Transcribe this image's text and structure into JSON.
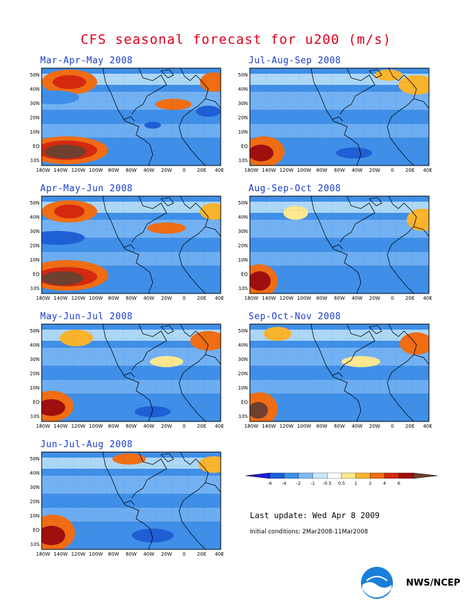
{
  "title": "CFS seasonal forecast for u200 (m/s)",
  "lat_labels": [
    "50N",
    "40N",
    "30N",
    "20N",
    "10N",
    "EQ",
    "10S"
  ],
  "lon_labels": [
    "180W",
    "140W",
    "120W",
    "100W",
    "80W",
    "60W",
    "40W",
    "20W",
    "0",
    "20E",
    "40E"
  ],
  "panels": [
    {
      "title": "Mar-Apr-May 2008"
    },
    {
      "title": "Jul-Aug-Sep 2008"
    },
    {
      "title": "Apr-May-Jun 2008"
    },
    {
      "title": "Aug-Sep-Oct 2008"
    },
    {
      "title": "May-Jun-Jul 2008"
    },
    {
      "title": "Sep-Oct-Nov 2008"
    },
    {
      "title": "Jun-Jul-Aug 2008"
    }
  ],
  "colorbar": {
    "labels": [
      "-6",
      "-4",
      "-2",
      "-1",
      "-0.5",
      "0.5",
      "1",
      "2",
      "4",
      "6"
    ],
    "colors": [
      "#1f1bd6",
      "#1f5fd6",
      "#3f8fe8",
      "#7fb9f5",
      "#c8e8fa",
      "#ffffff",
      "#fde891",
      "#f9b42e",
      "#f06d13",
      "#d6280f",
      "#a00e0e",
      "#6e4030"
    ]
  },
  "last_update": "Last update: Wed Apr 8 2009",
  "initial_conditions": "Initial conditions: 2Mar2008-11Mar2008",
  "credit": "NWS/NCEP"
}
